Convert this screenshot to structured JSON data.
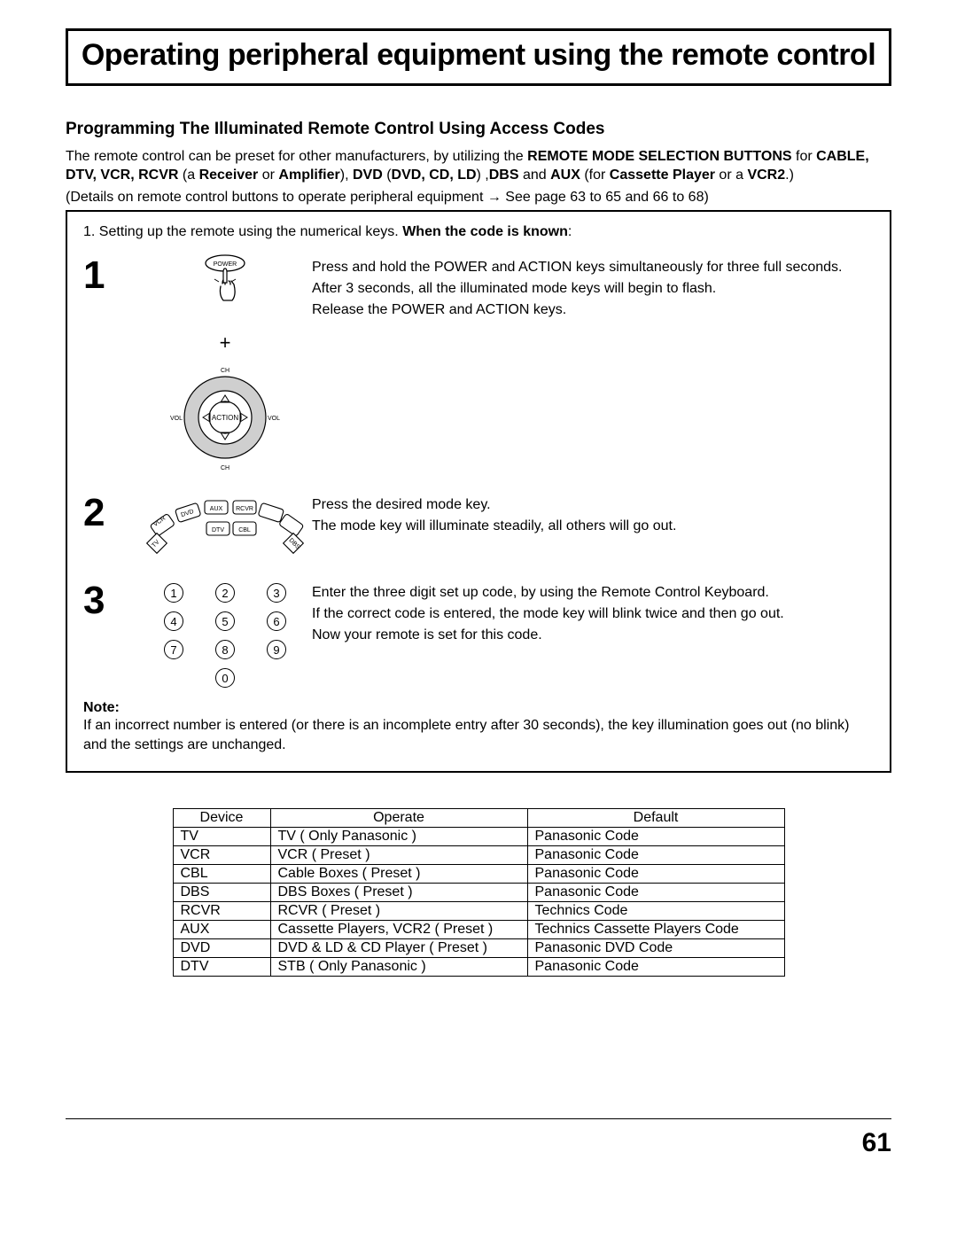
{
  "title": "Operating peripheral equipment using the remote control",
  "subheading": "Programming The Illuminated Remote Control Using Access Codes",
  "intro": {
    "line1_pre": "The remote control can be preset for other manufacturers, by utilizing the ",
    "line1_bold1": "REMOTE MODE SELECTION BUTTONS",
    "line1_post1": " for ",
    "line2_bold1": "CABLE, DTV, VCR, RCVR",
    "line2_txt1": " (a ",
    "line2_bold2": "Receiver",
    "line2_txt2": " or ",
    "line2_bold3": "Amplifier",
    "line2_txt3": "), ",
    "line2_bold4": "DVD",
    "line2_txt4": " (",
    "line2_bold5": "DVD, CD, LD",
    "line2_txt5": ") ,",
    "line2_bold6": "DBS",
    "line2_txt6": " and ",
    "line2_bold7": "AUX",
    "line2_txt7": " (for ",
    "line2_bold8": "Cassette Player",
    "line2_txt8": " or a ",
    "line3_bold1": "VCR2",
    "line3_txt1": ".)",
    "details": "(Details on remote control buttons to operate peripheral equipment  →  See page 63 to 65 and 66 to 68)"
  },
  "steps": {
    "lead_pre": "1. Setting up the remote using the numerical keys. ",
    "lead_bold": "When the code is known",
    "lead_post": ":",
    "s1": {
      "num": "1",
      "t1": "Press and hold the POWER and ACTION keys simultaneously for three full seconds.",
      "t2": "After 3 seconds, all the illuminated mode keys will begin to flash.",
      "t3": "Release the POWER and ACTION keys.",
      "power_label": "POWER",
      "plus": "+",
      "dpad": {
        "ch": "CH",
        "vol": "VOL",
        "action": "ACTION"
      }
    },
    "s2": {
      "num": "2",
      "t1": "Press the desired mode key.",
      "t2": "The mode key will illuminate steadily, all others will go out.",
      "modes": [
        "TV",
        "VCR",
        "DTV",
        "DVD",
        "CBL",
        "AUX",
        "RCVR",
        "DBS"
      ]
    },
    "s3": {
      "num": "3",
      "t1": "Enter the three digit set up code, by using the Remote Control Keyboard.",
      "t2": "If the correct code is entered, the mode key will blink twice and then go out.",
      "t3": "Now your remote is set for this code.",
      "keys": [
        "1",
        "2",
        "3",
        "4",
        "5",
        "6",
        "7",
        "8",
        "9",
        "0"
      ]
    },
    "note_label": "Note:",
    "note_text": "If an incorrect number is entered (or there is an incomplete entry after 30 seconds), the key illumination goes out (no  blink) and the settings are unchanged."
  },
  "table": {
    "headers": [
      "Device",
      "Operate",
      "Default"
    ],
    "rows": [
      [
        "TV",
        "TV ( Only Panasonic )",
        "Panasonic Code"
      ],
      [
        "VCR",
        "VCR ( Preset )",
        "Panasonic Code"
      ],
      [
        "CBL",
        "Cable Boxes ( Preset )",
        "Panasonic Code"
      ],
      [
        "DBS",
        "DBS Boxes ( Preset )",
        "Panasonic Code"
      ],
      [
        "RCVR",
        "RCVR ( Preset )",
        "Technics Code"
      ],
      [
        "AUX",
        "Cassette Players, VCR2  ( Preset )",
        "Technics Cassette Players Code"
      ],
      [
        "DVD",
        "DVD & LD & CD Player  ( Preset )",
        "Panasonic DVD Code"
      ],
      [
        "DTV",
        "STB  ( Only Panasonic )",
        "Panasonic Code"
      ]
    ]
  },
  "page_number": "61"
}
